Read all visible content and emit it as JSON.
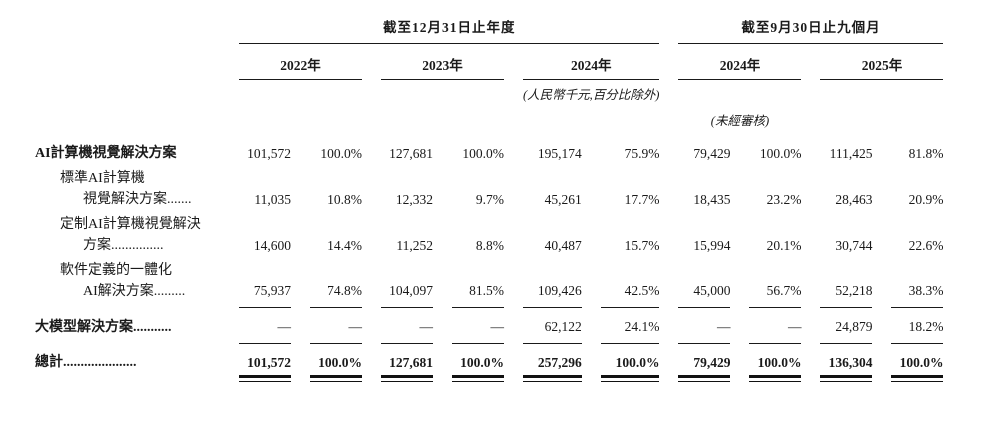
{
  "table": {
    "groups": [
      {
        "title": "截至12月31日止年度",
        "years": [
          "2022年",
          "2023年",
          "2024年"
        ]
      },
      {
        "title": "截至9月30日止九個月",
        "years": [
          "2024年",
          "2025年"
        ]
      }
    ],
    "currency_note": "(人民幣千元,百分比除外)",
    "unaudited_note": "(未經審核)",
    "rows": [
      {
        "label_lines": [
          "AI計算機視覺解決方案"
        ],
        "values": [
          "101,572",
          "100.0%",
          "127,681",
          "100.0%",
          "195,174",
          "75.9%",
          "79,429",
          "100.0%",
          "111,425",
          "81.8%"
        ]
      },
      {
        "label_lines": [
          "標準AI計算機",
          "視覺解決方案......."
        ],
        "values": [
          "11,035",
          "10.8%",
          "12,332",
          "9.7%",
          "45,261",
          "17.7%",
          "18,435",
          "23.2%",
          "28,463",
          "20.9%"
        ]
      },
      {
        "label_lines": [
          "定制AI計算機視覺解決",
          "方案..............."
        ],
        "values": [
          "14,600",
          "14.4%",
          "11,252",
          "8.8%",
          "40,487",
          "15.7%",
          "15,994",
          "20.1%",
          "30,744",
          "22.6%"
        ]
      },
      {
        "label_lines": [
          "軟件定義的一體化",
          "AI解決方案........."
        ],
        "values": [
          "75,937",
          "74.8%",
          "104,097",
          "81.5%",
          "109,426",
          "42.5%",
          "45,000",
          "56.7%",
          "52,218",
          "38.3%"
        ]
      },
      {
        "label_lines": [
          "大模型解決方案..........."
        ],
        "values": [
          "—",
          "—",
          "—",
          "—",
          "62,122",
          "24.1%",
          "—",
          "—",
          "24,879",
          "18.2%"
        ]
      },
      {
        "label_lines": [
          "總計....................."
        ],
        "values": [
          "101,572",
          "100.0%",
          "127,681",
          "100.0%",
          "257,296",
          "100.0%",
          "79,429",
          "100.0%",
          "136,304",
          "100.0%"
        ]
      }
    ]
  }
}
